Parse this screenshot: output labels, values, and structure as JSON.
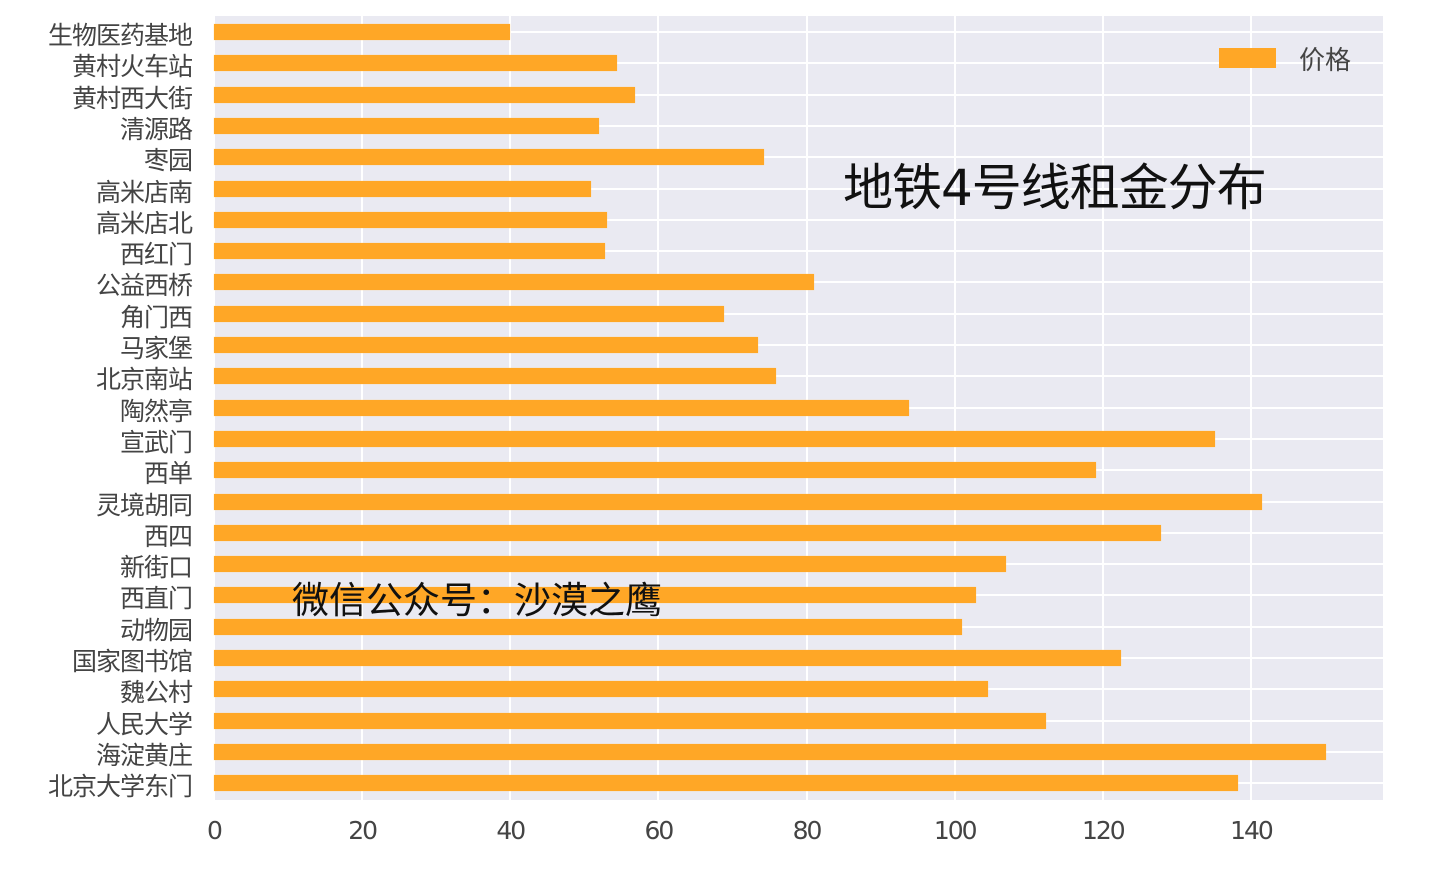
{
  "chart_data": {
    "type": "bar",
    "orientation": "horizontal",
    "title": "地铁4号线租金分布",
    "watermark": "微信公众号：沙漠之鹰",
    "xlabel": "",
    "ylabel": "",
    "xlim": [
      0,
      158
    ],
    "xticks": [
      "0",
      "20",
      "40",
      "60",
      "80",
      "100",
      "120",
      "140"
    ],
    "grid": true,
    "legend": {
      "position": "upper right",
      "entries": [
        "价格"
      ]
    },
    "colors": {
      "bar": "#ffa726",
      "plot_bg": "#eaeaf2",
      "grid": "#ffffff",
      "text": "#444444"
    },
    "categories": [
      "生物医药基地",
      "黄村火车站",
      "黄村西大街",
      "清源路",
      "枣园",
      "高米店南",
      "高米店北",
      "西红门",
      "公益西桥",
      "角门西",
      "马家堡",
      "北京南站",
      "陶然亭",
      "宣武门",
      "西单",
      "灵境胡同",
      "西四",
      "新街口",
      "西直门",
      "动物园",
      "国家图书馆",
      "魏公村",
      "人民大学",
      "海淀黄庄",
      "北京大学东门"
    ],
    "series": [
      {
        "name": "价格",
        "values": [
          40,
          54.4,
          56.8,
          52,
          74.3,
          50.9,
          53,
          52.8,
          81,
          68.9,
          73.4,
          75.9,
          93.8,
          135.1,
          119.1,
          141.5,
          127.9,
          106.9,
          102.9,
          101,
          122.5,
          104.5,
          112.3,
          150.1,
          138.2
        ]
      }
    ]
  }
}
